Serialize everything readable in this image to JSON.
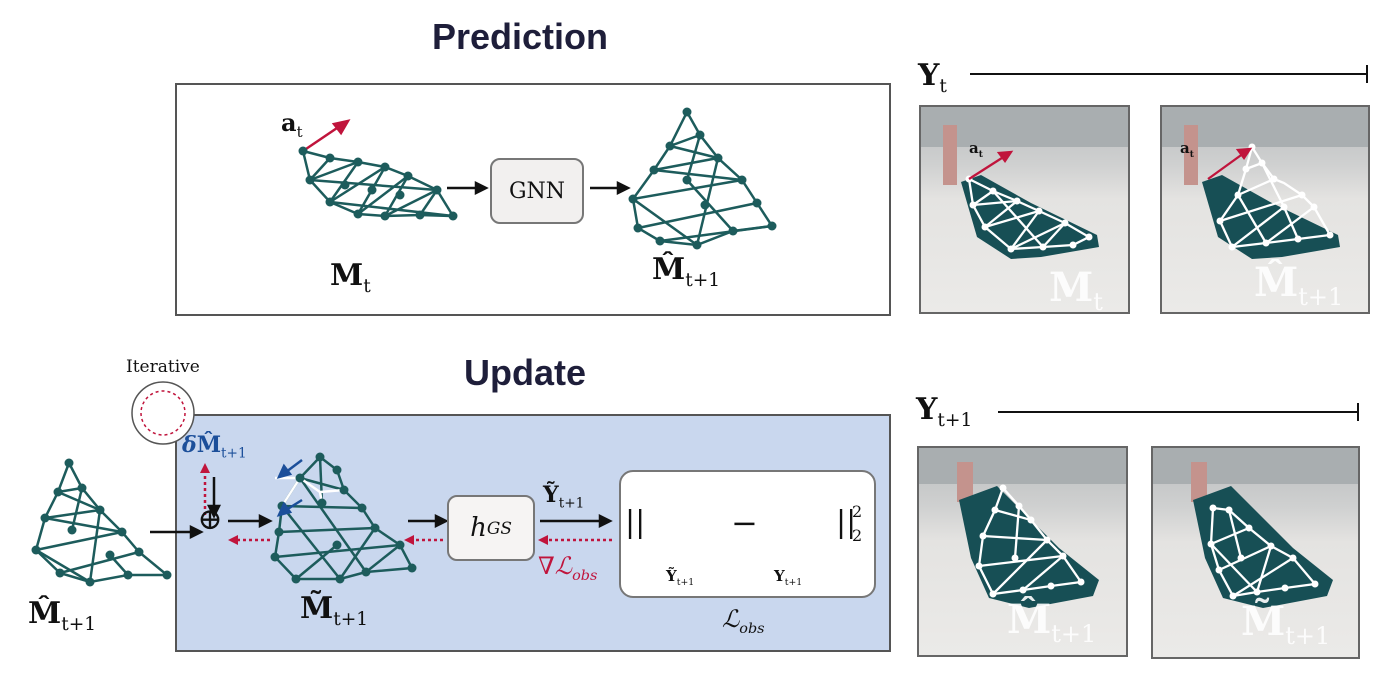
{
  "prediction": {
    "title": "Prediction",
    "action_label": {
      "base": "a",
      "sub": "t"
    },
    "mesh_in_label": {
      "base": "M",
      "sub": "t"
    },
    "gnn_label": "GNN",
    "mesh_out_label": {
      "base": "M̂",
      "sub": "t+1"
    }
  },
  "update": {
    "title": "Update",
    "iterative_label": "Iterative",
    "input_mesh_label": {
      "base": "M̂",
      "sub": "t+1"
    },
    "delta_label": {
      "prefix": "δ",
      "base": "M̂",
      "sub": "t+1"
    },
    "plus_symbol": "⊕",
    "refined_mesh_label": {
      "base": "M̃",
      "sub": "t+1"
    },
    "renderer_label": {
      "base": "h",
      "sub": "GS"
    },
    "rendered_label": {
      "base": "Ỹ",
      "sub": "t+1"
    },
    "gradient_label": {
      "prefix": "∇",
      "base": "ℒ",
      "sub": "obs"
    },
    "loss_open": "||",
    "loss_minus": "−",
    "loss_close": "||",
    "loss_sup": "2",
    "loss_sub": "2",
    "rendered_thumb_label": {
      "base": "Ỹ",
      "sub": "t+1"
    },
    "observed_thumb_label": {
      "base": "Y",
      "sub": "t+1"
    },
    "loss_label": {
      "base": "ℒ",
      "sub": "obs"
    }
  },
  "observations": {
    "top_label": {
      "base": "Y",
      "sub": "t"
    },
    "bottom_label": {
      "base": "Y",
      "sub": "t+1"
    },
    "photo1_label": {
      "base": "M",
      "sub": "t"
    },
    "photo1_action": {
      "base": "a",
      "sub": "t"
    },
    "photo2_label": {
      "base": "M̂",
      "sub": "t+1"
    },
    "photo2_action": {
      "base": "a",
      "sub": "t"
    },
    "photo3_label": {
      "base": "M̂",
      "sub": "t+1"
    },
    "photo4_label": {
      "base": "M̃",
      "sub": "t+1"
    }
  },
  "colors": {
    "mesh": "#1d5c5c",
    "action_arrow": "#c0143c",
    "delta_arrow": "#1c4f9a",
    "gradient": "#c0143c",
    "update_bg": "#c9d7ee",
    "cloth": "#174f55"
  }
}
